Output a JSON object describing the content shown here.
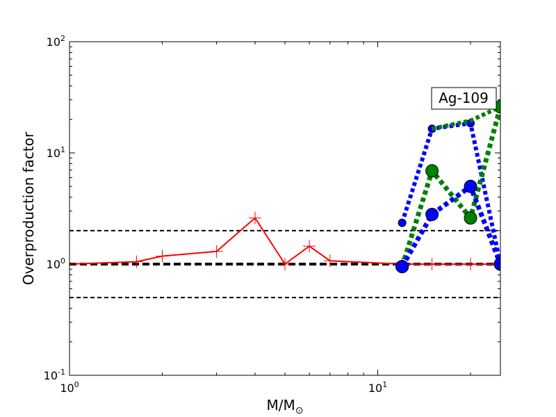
{
  "chart_data": {
    "type": "line",
    "title": "",
    "xlabel": "M/M",
    "xlabel_sub": "⊙",
    "ylabel": "Overproduction factor",
    "xscale": "log",
    "yscale": "log",
    "xlim": [
      1,
      25
    ],
    "ylim": [
      0.1,
      100
    ],
    "grid": false,
    "legend": "none",
    "x_ticks": [
      {
        "base": "10",
        "exp": "0",
        "value": 1
      },
      {
        "base": "10",
        "exp": "1",
        "value": 10
      }
    ],
    "y_ticks": [
      {
        "base": "10",
        "exp": "-1",
        "value": 0.1
      },
      {
        "base": "10",
        "exp": "0",
        "value": 1
      },
      {
        "base": "10",
        "exp": "1",
        "value": 10
      },
      {
        "base": "10",
        "exp": "2",
        "value": 100
      }
    ],
    "annotation": "Ag-109",
    "reference_lines": [
      {
        "y": 2.0,
        "style": "dashed",
        "width": 2,
        "color": "#000000"
      },
      {
        "y": 1.0,
        "style": "dashed",
        "width": 4,
        "color": "#000000"
      },
      {
        "y": 0.5,
        "style": "dashed",
        "width": 2,
        "color": "#000000"
      }
    ],
    "series": [
      {
        "style": "solid",
        "marker": "plus",
        "color": "#ff0000",
        "width": 2,
        "marker_size": 9,
        "x": [
          1.0,
          1.65,
          2.0,
          3.0,
          4.0,
          5.0,
          6.0,
          7.0,
          12.0,
          15.0,
          20.0,
          25.0
        ],
        "y": [
          1.0,
          1.05,
          1.18,
          1.3,
          2.6,
          1.0,
          1.45,
          1.07,
          1.0,
          1.0,
          1.0,
          1.0
        ]
      },
      {
        "style": "dotted",
        "marker": "circle",
        "color": "#0000ff",
        "width": 6,
        "marker_size": 5.5,
        "x": [
          12.0,
          15.0,
          20.0,
          25.0
        ],
        "y": [
          2.35,
          16.5,
          18.5,
          1.0
        ]
      },
      {
        "style": "dotted",
        "marker": "circle",
        "color": "#008000",
        "width": 7,
        "marker_size": 9,
        "x": [
          12.0,
          15.0,
          20.0,
          25.0
        ],
        "y": [
          0.95,
          6.9,
          2.6,
          26.0
        ]
      },
      {
        "style": "dotted",
        "marker": "circle",
        "color": "#008000",
        "width": 6,
        "marker_size": 0,
        "x": [
          15.0,
          20.0,
          25.0
        ],
        "y": [
          16.5,
          19.5,
          26.0
        ]
      },
      {
        "style": "dotted",
        "marker": "circle",
        "color": "#0000ff",
        "width": 7,
        "marker_size": 9,
        "x": [
          12.0,
          15.0,
          20.0,
          25.0
        ],
        "y": [
          0.95,
          2.8,
          5.0,
          1.0
        ]
      }
    ]
  }
}
